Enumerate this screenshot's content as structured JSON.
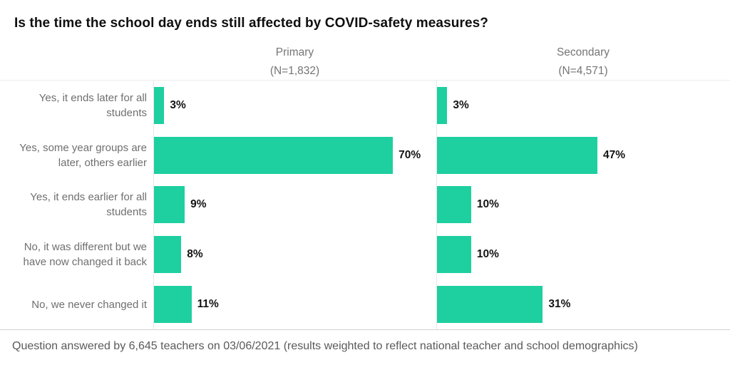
{
  "colors": {
    "bar": "#1ecfa0",
    "axis_line": "#e7e7e7",
    "plot_bottom_line": "#d2d2d2",
    "title_text": "#0f0f0f",
    "category_text": "#6f6f6f",
    "value_text": "#141414",
    "footer_text": "#5a5a5a"
  },
  "chart_data": {
    "type": "bar",
    "orientation": "horizontal",
    "title": "Is the time the school day ends still affected by COVID-safety measures?",
    "categories": [
      "Yes, it ends later for all students",
      "Yes, some year groups are later, others earlier",
      "Yes, it ends earlier for all students",
      "No, it was different but we have now changed it back",
      "No, we never changed it"
    ],
    "series": [
      {
        "name": "Primary",
        "n_label": "(N=1,832)",
        "values": [
          3,
          70,
          9,
          8,
          11
        ],
        "value_labels": [
          "3%",
          "70%",
          "9%",
          "8%",
          "11%"
        ]
      },
      {
        "name": "Secondary",
        "n_label": "(N=4,571)",
        "values": [
          3,
          47,
          10,
          10,
          31
        ],
        "value_labels": [
          "3%",
          "47%",
          "10%",
          "10%",
          "31%"
        ]
      }
    ],
    "value_suffix": "%",
    "xlim": [
      0,
      82.5
    ],
    "grid": false,
    "legend_position": "column-headers",
    "footnote": "Question answered by 6,645 teachers on 03/06/2021 (results weighted to reflect national teacher and school demographics)"
  }
}
